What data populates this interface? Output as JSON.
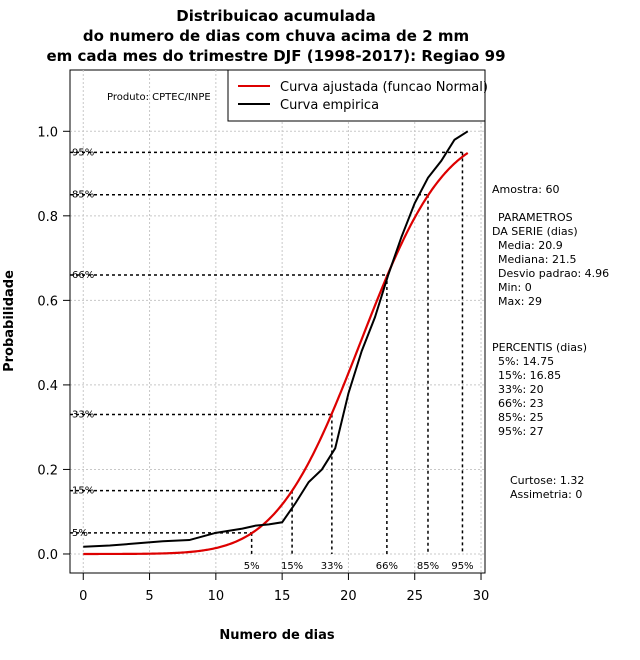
{
  "chart_data": {
    "type": "line",
    "title_lines": [
      "Distribuicao acumulada",
      "do numero de dias com chuva acima de 2 mm",
      "em cada mes do trimestre DJF (1998-2017): Regiao 99"
    ],
    "xlabel": "Numero de dias",
    "ylabel": "Probabilidade",
    "xlim": [
      -1,
      30.3
    ],
    "ylim": [
      -0.045,
      1.145
    ],
    "xticks": [
      0,
      5,
      10,
      15,
      20,
      25,
      30
    ],
    "yticks": [
      0.0,
      0.2,
      0.4,
      0.6,
      0.8,
      1.0
    ],
    "ytick_labels": [
      "0.0",
      "0.2",
      "0.4",
      "0.6",
      "0.8",
      "1.0"
    ],
    "grid": true,
    "legend": {
      "position": "top-right",
      "entries": [
        {
          "label": "Curva ajustada (funcao Normal)",
          "color": "#dd0000"
        },
        {
          "label": "Curva empirica",
          "color": "#000000"
        }
      ]
    },
    "product_label": "Produto: CPTEC/INPE",
    "series": [
      {
        "name": "Curva ajustada (funcao Normal)",
        "color": "#dd0000",
        "mean": 20.9,
        "sd": 4.96,
        "x_range": [
          0,
          29
        ]
      },
      {
        "name": "Curva empirica",
        "color": "#000000",
        "x": [
          0,
          2,
          4,
          6,
          8,
          10,
          12,
          13,
          14,
          15,
          16,
          17,
          18,
          19,
          20,
          21,
          22,
          23,
          24,
          25,
          26,
          27,
          28,
          29
        ],
        "y": [
          0.017,
          0.02,
          0.025,
          0.03,
          0.033,
          0.05,
          0.06,
          0.067,
          0.07,
          0.075,
          0.12,
          0.17,
          0.2,
          0.25,
          0.38,
          0.48,
          0.56,
          0.66,
          0.75,
          0.83,
          0.89,
          0.93,
          0.98,
          1.0
        ]
      }
    ],
    "percentile_markers": [
      {
        "label": "5%",
        "prob": 0.05,
        "x": 12.7
      },
      {
        "label": "15%",
        "prob": 0.15,
        "x": 15.75
      },
      {
        "label": "33%",
        "prob": 0.33,
        "x": 18.75
      },
      {
        "label": "66%",
        "prob": 0.66,
        "x": 22.9
      },
      {
        "label": "85%",
        "prob": 0.85,
        "x": 26
      },
      {
        "label": "95%",
        "prob": 0.95,
        "x": 28.6
      }
    ]
  },
  "stats_panel": {
    "sample": "Amostra: 60",
    "params_title_1": "PARAMETROS",
    "params_title_2": "DA SERIE (dias)",
    "params": [
      "Media: 20.9",
      "Mediana: 21.5",
      "Desvio padrao: 4.96",
      "Min: 0",
      "Max: 29"
    ],
    "percentis_title": "PERCENTIS (dias)",
    "percentis": [
      "5%: 14.75",
      "15%: 16.85",
      "33%: 20",
      "66%: 23",
      "85%: 25",
      "95%: 27"
    ],
    "curtose": "Curtose: 1.32",
    "assimetria": "Assimetria: 0"
  }
}
